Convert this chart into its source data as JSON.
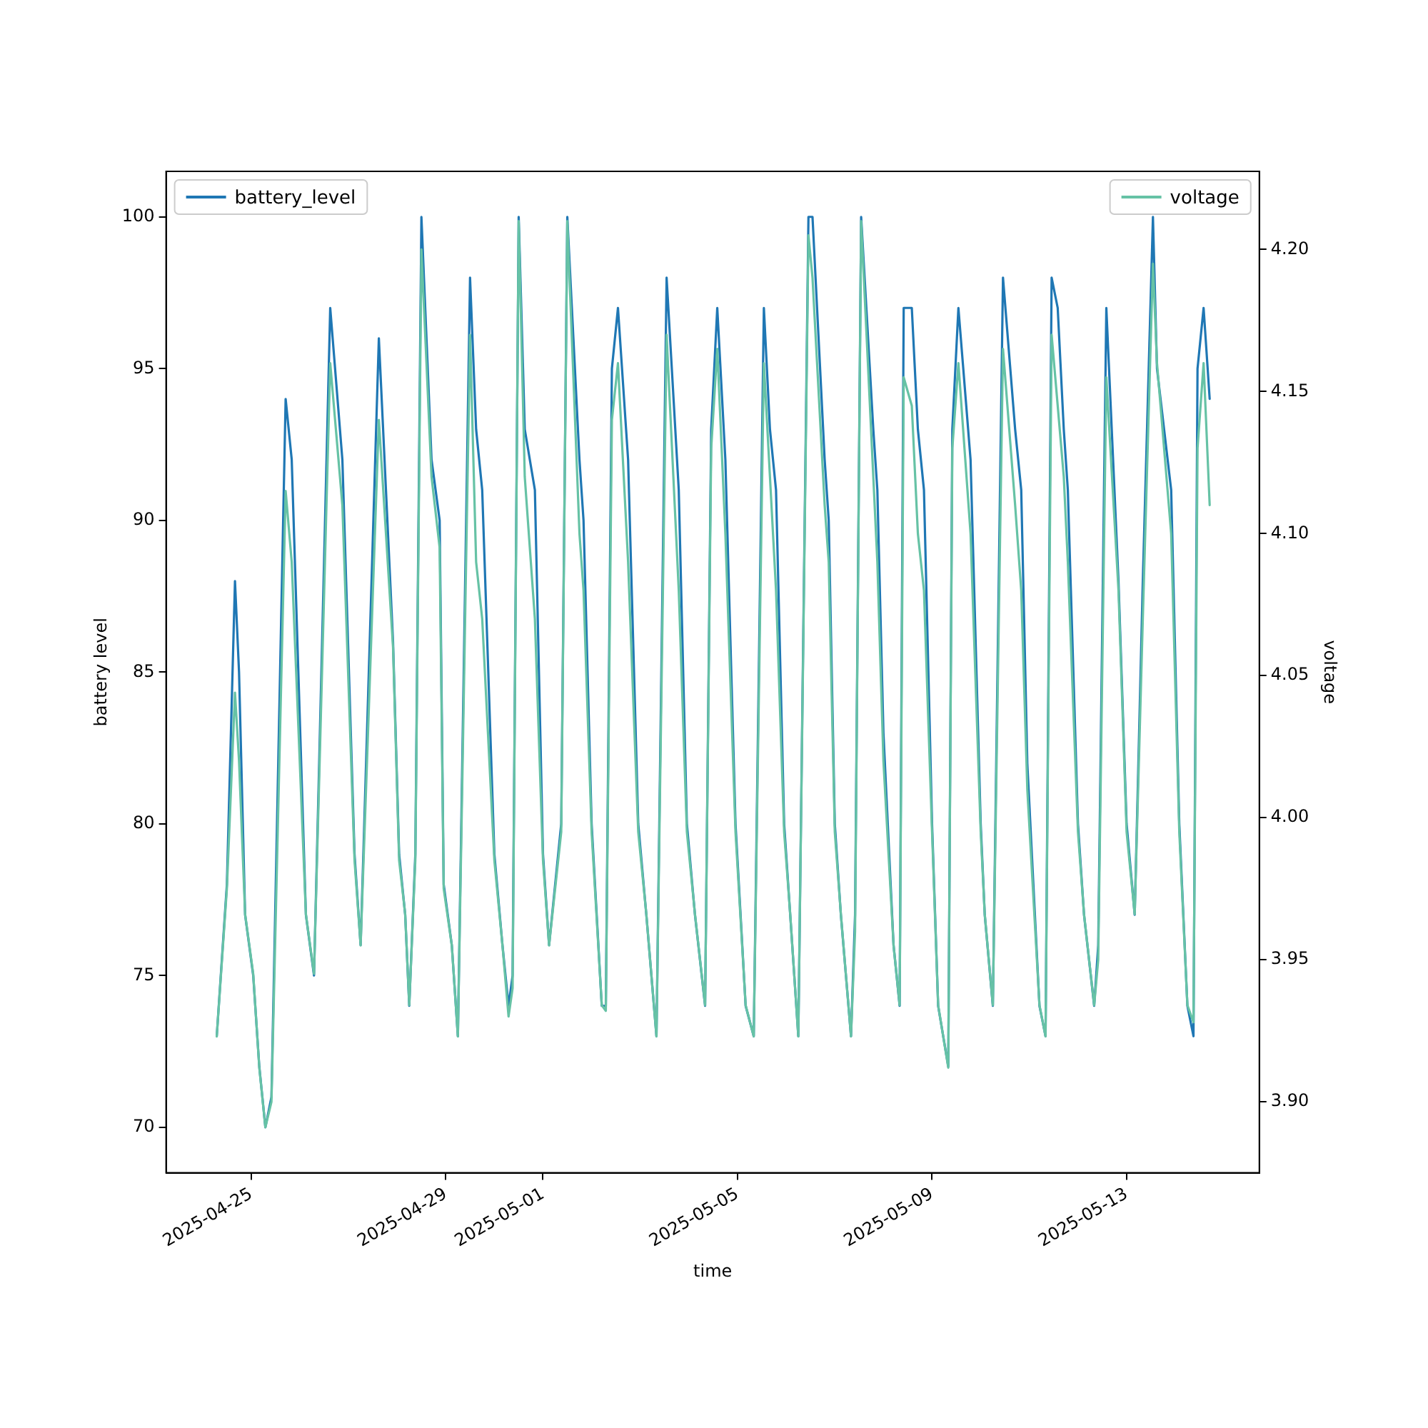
{
  "chart_data": {
    "type": "line",
    "xlabel": "time",
    "ylabel": "battery level",
    "y2label": "voltage",
    "x": [
      "2025-04-24T07:00",
      "2025-04-24T12:00",
      "2025-04-24T16:00",
      "2025-04-24T18:00",
      "2025-04-24T21:00",
      "2025-04-25T01:00",
      "2025-04-25T04:00",
      "2025-04-25T07:00",
      "2025-04-25T10:00",
      "2025-04-25T17:00",
      "2025-04-25T20:00",
      "2025-04-26T03:00",
      "2025-04-26T07:00",
      "2025-04-26T15:00",
      "2025-04-26T21:00",
      "2025-04-27T03:00",
      "2025-04-27T06:00",
      "2025-04-27T15:00",
      "2025-04-27T22:00",
      "2025-04-28T01:00",
      "2025-04-28T04:00",
      "2025-04-28T06:00",
      "2025-04-28T09:00",
      "2025-04-28T12:00",
      "2025-04-28T17:00",
      "2025-04-28T21:00",
      "2025-04-28T23:00",
      "2025-04-29T03:00",
      "2025-04-29T06:00",
      "2025-04-29T12:00",
      "2025-04-29T15:00",
      "2025-04-29T18:00",
      "2025-04-30T00:00",
      "2025-04-30T04:00",
      "2025-04-30T07:00",
      "2025-04-30T09:00",
      "2025-04-30T12:00",
      "2025-04-30T15:00",
      "2025-04-30T20:00",
      "2025-05-01T00:00",
      "2025-05-01T03:00",
      "2025-05-01T09:00",
      "2025-05-01T12:00",
      "2025-05-01T18:00",
      "2025-05-01T20:00",
      "2025-05-02T00:00",
      "2025-05-02T05:00",
      "2025-05-02T07:00",
      "2025-05-02T10:00",
      "2025-05-02T13:00",
      "2025-05-02T18:00",
      "2025-05-02T23:00",
      "2025-05-03T03:00",
      "2025-05-03T08:00",
      "2025-05-03T13:00",
      "2025-05-03T19:00",
      "2025-05-03T23:00",
      "2025-05-04T03:00",
      "2025-05-04T08:00",
      "2025-05-04T11:00",
      "2025-05-04T14:00",
      "2025-05-04T18:00",
      "2025-05-04T23:00",
      "2025-05-05T04:00",
      "2025-05-05T08:00",
      "2025-05-05T13:00",
      "2025-05-05T16:00",
      "2025-05-05T19:00",
      "2025-05-05T23:00",
      "2025-05-06T02:00",
      "2025-05-06T06:00",
      "2025-05-06T11:00",
      "2025-05-06T13:00",
      "2025-05-06T19:00",
      "2025-05-06T21:00",
      "2025-05-07T00:00",
      "2025-05-07T03:00",
      "2025-05-07T08:00",
      "2025-05-07T10:00",
      "2025-05-07T13:00",
      "2025-05-07T19:00",
      "2025-05-07T21:00",
      "2025-05-08T00:00",
      "2025-05-08T05:00",
      "2025-05-08T08:00",
      "2025-05-08T10:00",
      "2025-05-08T14:00",
      "2025-05-08T17:00",
      "2025-05-08T20:00",
      "2025-05-09T00:00",
      "2025-05-09T03:00",
      "2025-05-09T08:00",
      "2025-05-09T10:00",
      "2025-05-09T13:00",
      "2025-05-09T19:00",
      "2025-05-10T00:00",
      "2025-05-10T02:00",
      "2025-05-10T06:00",
      "2025-05-10T11:00",
      "2025-05-10T17:00",
      "2025-05-10T20:00",
      "2025-05-10T23:00",
      "2025-05-11T05:00",
      "2025-05-11T08:00",
      "2025-05-11T11:00",
      "2025-05-11T14:00",
      "2025-05-11T17:00",
      "2025-05-11T19:00",
      "2025-05-12T00:00",
      "2025-05-12T03:00",
      "2025-05-12T08:00",
      "2025-05-12T10:00",
      "2025-05-12T14:00",
      "2025-05-12T20:00",
      "2025-05-13T00:00",
      "2025-05-13T04:00",
      "2025-05-13T08:00",
      "2025-05-13T13:00",
      "2025-05-13T15:00",
      "2025-05-13T22:00",
      "2025-05-14T02:00",
      "2025-05-14T06:00",
      "2025-05-14T09:00",
      "2025-05-14T11:00",
      "2025-05-14T14:00",
      "2025-05-14T17:00"
    ],
    "series": [
      {
        "name": "battery_level",
        "color": "#1f77b4",
        "values": [
          73,
          78,
          88,
          85,
          77,
          75,
          72,
          70,
          71,
          94,
          92,
          77,
          75,
          97,
          92,
          79,
          76,
          96,
          86,
          79,
          77,
          74,
          79,
          100,
          92,
          90,
          78,
          76,
          73,
          98,
          93,
          91,
          79,
          76,
          74,
          75,
          100,
          93,
          91,
          79,
          76,
          80,
          100,
          92,
          90,
          80,
          74,
          74,
          95,
          97,
          92,
          80,
          77,
          73,
          98,
          91,
          80,
          77,
          74,
          93,
          97,
          92,
          80,
          74,
          73,
          97,
          93,
          91,
          80,
          77,
          73,
          100,
          100,
          92,
          90,
          80,
          77,
          73,
          77,
          100,
          93,
          91,
          83,
          76,
          74,
          97,
          97,
          93,
          91,
          80,
          74,
          72,
          93,
          97,
          92,
          80,
          77,
          74,
          98,
          93,
          91,
          82,
          74,
          73,
          98,
          97,
          93,
          91,
          80,
          77,
          74,
          76,
          97,
          88,
          80,
          77,
          88,
          100,
          95,
          91,
          80,
          74,
          73,
          95,
          97,
          94
        ]
      },
      {
        "name": "voltage",
        "color": "#66c2a5",
        "axis": "y2",
        "values": [
          3.923,
          3.975,
          4.044,
          4.02,
          3.966,
          3.945,
          3.912,
          3.891,
          3.9,
          4.115,
          4.09,
          3.966,
          3.945,
          4.16,
          4.11,
          3.985,
          3.955,
          4.14,
          4.06,
          3.985,
          3.966,
          3.934,
          3.985,
          4.2,
          4.12,
          4.095,
          3.975,
          3.955,
          3.923,
          4.17,
          4.09,
          4.07,
          3.985,
          3.955,
          3.93,
          3.94,
          4.21,
          4.12,
          4.07,
          3.985,
          3.955,
          3.995,
          4.21,
          4.1,
          4.08,
          3.995,
          3.934,
          3.932,
          4.14,
          4.16,
          4.09,
          3.995,
          3.966,
          3.923,
          4.17,
          4.08,
          3.995,
          3.966,
          3.934,
          4.13,
          4.165,
          4.1,
          3.995,
          3.934,
          3.923,
          4.16,
          4.12,
          4.08,
          3.995,
          3.966,
          3.923,
          4.205,
          4.19,
          4.11,
          4.09,
          3.995,
          3.966,
          3.923,
          3.96,
          4.21,
          4.12,
          4.09,
          4.02,
          3.955,
          3.934,
          4.155,
          4.145,
          4.1,
          4.08,
          3.995,
          3.934,
          3.912,
          4.13,
          4.16,
          4.1,
          3.995,
          3.966,
          3.934,
          4.165,
          4.11,
          4.08,
          4.01,
          3.934,
          3.923,
          4.17,
          4.145,
          4.12,
          4.09,
          3.995,
          3.966,
          3.934,
          3.95,
          4.155,
          4.08,
          3.995,
          3.966,
          4.07,
          4.195,
          4.16,
          4.1,
          3.995,
          3.934,
          3.928,
          4.13,
          4.16,
          4.11
        ]
      }
    ],
    "xlim": [
      "2025-04-23T06:00",
      "2025-05-15T17:30"
    ],
    "xticks": [
      "2025-04-25",
      "2025-04-29",
      "2025-05-01",
      "2025-05-05",
      "2025-05-09",
      "2025-05-13"
    ],
    "ylim": [
      68.5,
      101.5
    ],
    "yticks": [
      70,
      75,
      80,
      85,
      90,
      95,
      100
    ],
    "y2lim": [
      3.875,
      4.2275
    ],
    "y2ticks": [
      {
        "value": 3.9,
        "label": "3.90"
      },
      {
        "value": 3.95,
        "label": "3.95"
      },
      {
        "value": 4.0,
        "label": "4.00"
      },
      {
        "value": 4.05,
        "label": "4.05"
      },
      {
        "value": 4.1,
        "label": "4.10"
      },
      {
        "value": 4.15,
        "label": "4.15"
      },
      {
        "value": 4.2,
        "label": "4.20"
      }
    ],
    "grid": false,
    "legend": "top left",
    "line_style": "solid",
    "marker": "none"
  }
}
